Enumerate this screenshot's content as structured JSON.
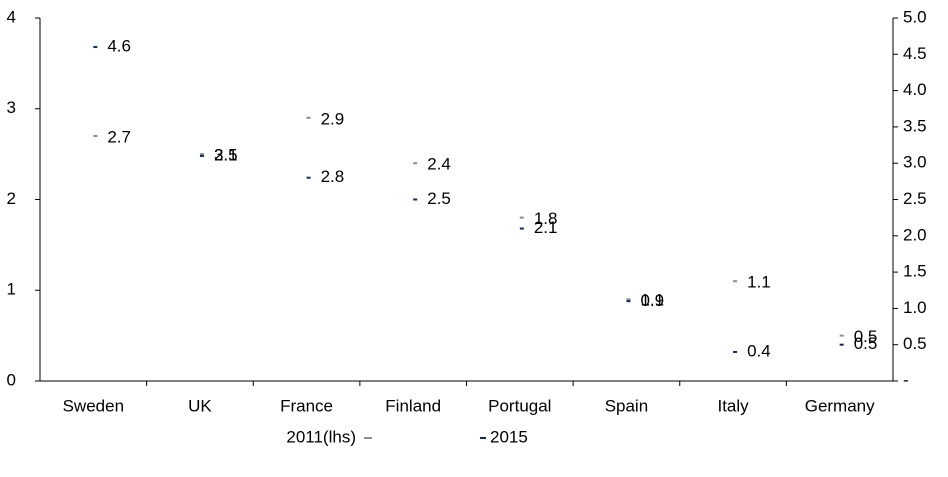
{
  "chart_data": {
    "type": "scatter",
    "categories": [
      "Sweden",
      "UK",
      "France",
      "Finland",
      "Portugal",
      "Spain",
      "Italy",
      "Germany"
    ],
    "series": [
      {
        "name": "2011(lhs)",
        "color": "#8c8c8c",
        "values": [
          2.7,
          2.5,
          2.9,
          2.4,
          1.8,
          0.9,
          1.1,
          0.5
        ]
      },
      {
        "name": "2015",
        "color": "#0d2a5c",
        "axis": "y2",
        "values": [
          4.6,
          3.1,
          2.8,
          2.5,
          2.1,
          1.1,
          0.4,
          0.5
        ]
      }
    ],
    "ylim": [
      0,
      4
    ],
    "yticks": [
      0,
      1,
      2,
      3,
      4
    ],
    "y2lim": [
      0,
      5
    ],
    "y2ticks": [
      {
        "value": 0,
        "label": "-"
      },
      0.5,
      {
        "value": 1,
        "label": "1.0"
      },
      1.5,
      {
        "value": 2,
        "label": "2.0"
      },
      2.5,
      {
        "value": 3,
        "label": "3.0"
      },
      3.5,
      {
        "value": 4,
        "label": "4.0"
      },
      4.5,
      {
        "value": 5,
        "label": "5.0"
      }
    ],
    "legend": "bottom"
  }
}
